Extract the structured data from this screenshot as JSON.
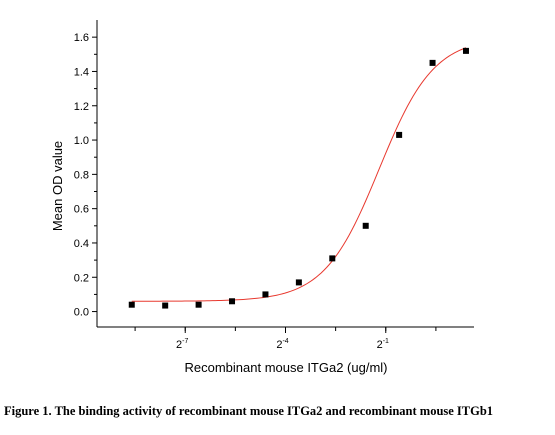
{
  "caption": "Figure 1. The binding activity of recombinant mouse ITGa2 and recombinant mouse ITGb1",
  "chart_data": {
    "type": "scatter",
    "title": "",
    "xlabel": "Recombinant mouse ITGa2  (ug/ml)",
    "ylabel": "Mean OD value",
    "x_scale": "log2",
    "xlim": [
      -9.64,
      1.64
    ],
    "ylim": [
      -0.09,
      1.7
    ],
    "y_ticks": [
      0.0,
      0.2,
      0.4,
      0.6,
      0.8,
      1.0,
      1.2,
      1.4,
      1.6
    ],
    "y_tick_labels": [
      "0.0",
      "0.2",
      "0.4",
      "0.6",
      "0.8",
      "1.0",
      "1.2",
      "1.4",
      "1.6"
    ],
    "x_ticks": [
      -7,
      -4,
      -1
    ],
    "x_tick_labels": [
      {
        "base": "2",
        "exp": "-7"
      },
      {
        "base": "2",
        "exp": "-4"
      },
      {
        "base": "2",
        "exp": "-1"
      }
    ],
    "grid": false,
    "series": [
      {
        "marker": "square",
        "color": "#000000",
        "x": [
          -8.6,
          -7.6,
          -6.6,
          -5.6,
          -4.6,
          -3.6,
          -2.6,
          -1.6,
          -0.6,
          0.4,
          1.4
        ],
        "values": [
          0.04,
          0.035,
          0.04,
          0.06,
          0.1,
          0.17,
          0.31,
          0.5,
          1.03,
          1.45,
          1.52
        ]
      }
    ],
    "fit_curve": {
      "color": "#e8392f",
      "bottom": 0.06,
      "top": 1.6,
      "logEC50": -1.2,
      "hill_slope_log2": 0.42,
      "x_range": [
        -8.6,
        1.4
      ]
    }
  }
}
